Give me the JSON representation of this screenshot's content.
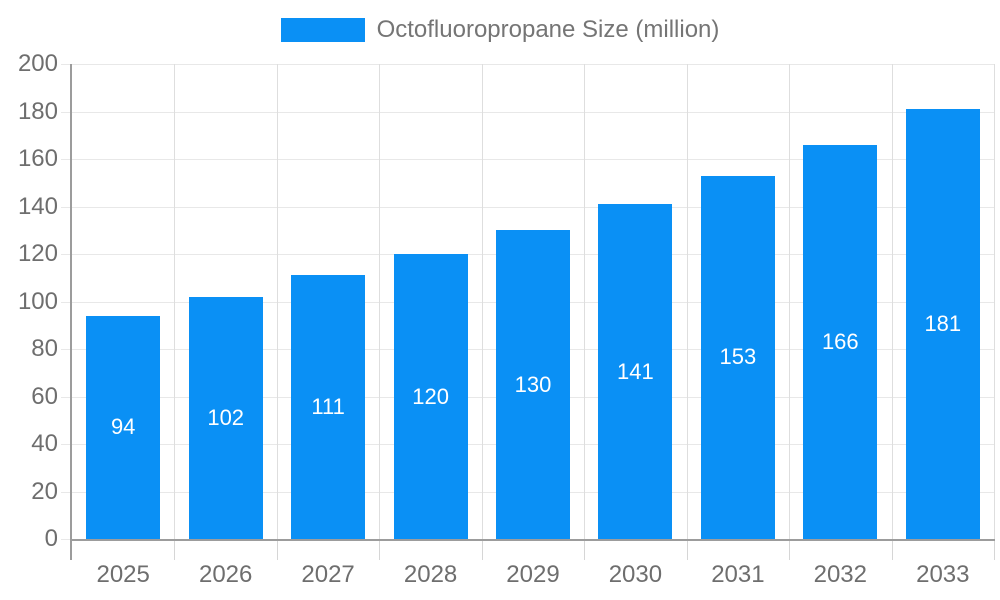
{
  "chart_data": {
    "type": "bar",
    "title": "Octofluoropropane Size (million)",
    "legend": {
      "position": "top-center",
      "labels": [
        "Octofluoropropane Size (million)"
      ]
    },
    "categories": [
      "2025",
      "2026",
      "2027",
      "2028",
      "2029",
      "2030",
      "2031",
      "2032",
      "2033"
    ],
    "series": [
      {
        "name": "Octofluoropropane Size (million)",
        "values": [
          94,
          102,
          111,
          120,
          130,
          141,
          153,
          166,
          181
        ]
      }
    ],
    "xlabel": "",
    "ylabel": "",
    "ylim": [
      0,
      200
    ],
    "y_ticks": [
      0,
      20,
      40,
      60,
      80,
      100,
      120,
      140,
      160,
      180,
      200
    ],
    "grid": {
      "horizontal": true,
      "vertical": true
    },
    "value_label_position": "inside-center",
    "colors": {
      "bar": "#0a90f5",
      "value_label": "#ffffff",
      "axis_text": "#6e6e6e",
      "legend_text": "#757575",
      "grid_horizontal": "#e8e8e8",
      "grid_vertical": "#dedede",
      "axis_line": "#9c9c9c",
      "tick": "#d6d6d6",
      "background": "#ffffff"
    }
  }
}
